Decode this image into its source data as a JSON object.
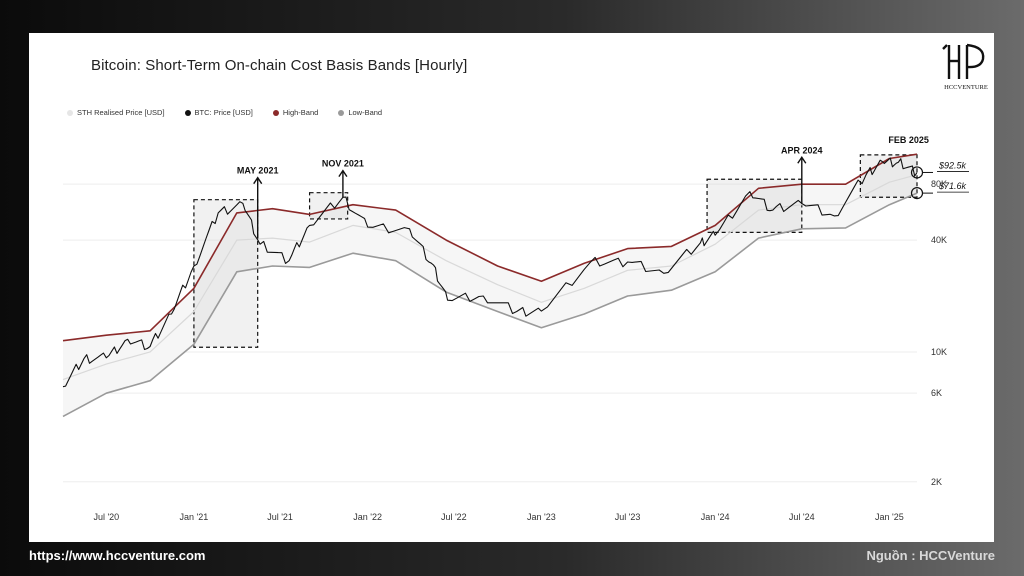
{
  "footer": {
    "url": "https://www.hccventure.com",
    "source": "Nguồn : HCCVenture"
  },
  "brand": {
    "name": "HCCVENTURE"
  },
  "colors": {
    "price": "#111111",
    "sth": "#d9d9d9",
    "high": "#8b2a2a",
    "low": "#9a9a9a"
  },
  "chart_data": {
    "type": "line",
    "title": "Bitcoin: Short-Term On-chain Cost Basis Bands [Hourly]",
    "xlabel": "",
    "ylabel": "",
    "y_scale": "log",
    "ylim": [
      1500,
      130000
    ],
    "xlim": [
      "2020-04-01",
      "2025-02-28"
    ],
    "x_ticks": [
      {
        "date": "2020-07-01",
        "label": "Jul '20"
      },
      {
        "date": "2021-01-01",
        "label": "Jan '21"
      },
      {
        "date": "2021-07-01",
        "label": "Jul '21"
      },
      {
        "date": "2022-01-01",
        "label": "Jan '22"
      },
      {
        "date": "2022-07-01",
        "label": "Jul '22"
      },
      {
        "date": "2023-01-01",
        "label": "Jan '23"
      },
      {
        "date": "2023-07-01",
        "label": "Jul '23"
      },
      {
        "date": "2024-01-01",
        "label": "Jan '24"
      },
      {
        "date": "2024-07-01",
        "label": "Jul '24"
      },
      {
        "date": "2025-01-01",
        "label": "Jan '25"
      }
    ],
    "y_ticks": [
      {
        "value": 2000,
        "label": "2K"
      },
      {
        "value": 6000,
        "label": "6K"
      },
      {
        "value": 10000,
        "label": "10K"
      },
      {
        "value": 40000,
        "label": "40K"
      },
      {
        "value": 80000,
        "label": "80K"
      }
    ],
    "legend_position": "top-left",
    "series": [
      {
        "name": "STH Realised Price [USD]",
        "color": "#d9d9d9",
        "points": [
          [
            "2020-04-01",
            7100
          ],
          [
            "2020-07-01",
            8600
          ],
          [
            "2020-10-01",
            10000
          ],
          [
            "2021-01-01",
            16500
          ],
          [
            "2021-04-01",
            40000
          ],
          [
            "2021-06-15",
            41000
          ],
          [
            "2021-09-01",
            39000
          ],
          [
            "2021-12-01",
            48000
          ],
          [
            "2022-03-01",
            44000
          ],
          [
            "2022-06-15",
            31000
          ],
          [
            "2022-10-01",
            23000
          ],
          [
            "2023-01-01",
            18500
          ],
          [
            "2023-04-01",
            22000
          ],
          [
            "2023-07-01",
            27500
          ],
          [
            "2023-10-01",
            29000
          ],
          [
            "2024-01-01",
            38000
          ],
          [
            "2024-04-01",
            58000
          ],
          [
            "2024-07-01",
            62000
          ],
          [
            "2024-10-01",
            62000
          ],
          [
            "2025-01-01",
            82000
          ],
          [
            "2025-02-28",
            90000
          ]
        ]
      },
      {
        "name": "BTC: Price [USD]",
        "color": "#111111",
        "points": [
          [
            "2020-04-01",
            6500
          ],
          [
            "2020-05-15",
            9200
          ],
          [
            "2020-07-01",
            9300
          ],
          [
            "2020-08-15",
            11700
          ],
          [
            "2020-10-01",
            10700
          ],
          [
            "2020-11-15",
            16000
          ],
          [
            "2021-01-01",
            29000
          ],
          [
            "2021-02-21",
            56000
          ],
          [
            "2021-04-14",
            63000
          ],
          [
            "2021-05-20",
            38000
          ],
          [
            "2021-07-20",
            31000
          ],
          [
            "2021-09-01",
            48000
          ],
          [
            "2021-11-10",
            68000
          ],
          [
            "2022-01-01",
            47000
          ],
          [
            "2022-03-30",
            46000
          ],
          [
            "2022-05-15",
            30000
          ],
          [
            "2022-06-18",
            19000
          ],
          [
            "2022-09-01",
            20000
          ],
          [
            "2022-11-10",
            16500
          ],
          [
            "2023-01-01",
            16600
          ],
          [
            "2023-04-14",
            30400
          ],
          [
            "2023-07-01",
            30500
          ],
          [
            "2023-09-15",
            26500
          ],
          [
            "2023-12-01",
            38700
          ],
          [
            "2024-01-01",
            42500
          ],
          [
            "2024-03-14",
            73000
          ],
          [
            "2024-05-01",
            58000
          ],
          [
            "2024-07-01",
            63000
          ],
          [
            "2024-09-07",
            54000
          ],
          [
            "2024-11-13",
            90000
          ],
          [
            "2024-12-17",
            106000
          ],
          [
            "2025-01-20",
            105000
          ],
          [
            "2025-02-28",
            92500
          ]
        ]
      },
      {
        "name": "High-Band",
        "color": "#8b2a2a",
        "points": [
          [
            "2020-04-01",
            11500
          ],
          [
            "2020-07-01",
            12300
          ],
          [
            "2020-10-01",
            13000
          ],
          [
            "2021-01-01",
            22000
          ],
          [
            "2021-04-01",
            56000
          ],
          [
            "2021-06-15",
            59000
          ],
          [
            "2021-09-01",
            55000
          ],
          [
            "2021-12-01",
            62000
          ],
          [
            "2022-03-01",
            58000
          ],
          [
            "2022-06-15",
            40000
          ],
          [
            "2022-10-01",
            29000
          ],
          [
            "2023-01-01",
            24000
          ],
          [
            "2023-04-01",
            30000
          ],
          [
            "2023-07-01",
            36000
          ],
          [
            "2023-10-01",
            37000
          ],
          [
            "2024-01-01",
            48000
          ],
          [
            "2024-04-01",
            76000
          ],
          [
            "2024-07-01",
            80000
          ],
          [
            "2024-10-01",
            80000
          ],
          [
            "2025-01-01",
            110000
          ],
          [
            "2025-02-28",
            116000
          ]
        ]
      },
      {
        "name": "Low-Band",
        "color": "#9a9a9a",
        "points": [
          [
            "2020-04-01",
            4500
          ],
          [
            "2020-07-01",
            6000
          ],
          [
            "2020-10-01",
            7000
          ],
          [
            "2021-01-01",
            11000
          ],
          [
            "2021-04-01",
            27000
          ],
          [
            "2021-06-15",
            29000
          ],
          [
            "2021-09-01",
            28500
          ],
          [
            "2021-12-01",
            34000
          ],
          [
            "2022-03-01",
            31000
          ],
          [
            "2022-06-15",
            21000
          ],
          [
            "2022-10-01",
            16500
          ],
          [
            "2023-01-01",
            13500
          ],
          [
            "2023-04-01",
            16000
          ],
          [
            "2023-07-01",
            20000
          ],
          [
            "2023-10-01",
            21500
          ],
          [
            "2024-01-01",
            27000
          ],
          [
            "2024-04-01",
            41000
          ],
          [
            "2024-07-01",
            46000
          ],
          [
            "2024-10-01",
            46500
          ],
          [
            "2025-01-01",
            62000
          ],
          [
            "2025-02-28",
            71600
          ]
        ]
      }
    ],
    "annotations": [
      {
        "label": "MAY 2021",
        "x_start": "2021-01-01",
        "x_end": "2021-05-15",
        "y_low": 10600,
        "y_high": 66000,
        "arrow_date": "2021-05-15"
      },
      {
        "label": "NOV 2021",
        "x_start": "2021-09-01",
        "x_end": "2021-11-20",
        "y_low": 52000,
        "y_high": 72000,
        "arrow_date": "2021-11-10"
      },
      {
        "label": "APR 2024",
        "x_start": "2023-12-15",
        "x_end": "2024-07-01",
        "y_low": 44000,
        "y_high": 85000,
        "arrow_date": "2024-07-01"
      },
      {
        "label": "FEB 2025",
        "x_start": "2024-11-01",
        "x_end": "2025-02-28",
        "y_low": 68000,
        "y_high": 115000,
        "arrow_date": null
      }
    ],
    "value_labels": [
      {
        "label": "$92.5k",
        "value": 92500
      },
      {
        "label": "$71.6k",
        "value": 71600
      }
    ]
  }
}
